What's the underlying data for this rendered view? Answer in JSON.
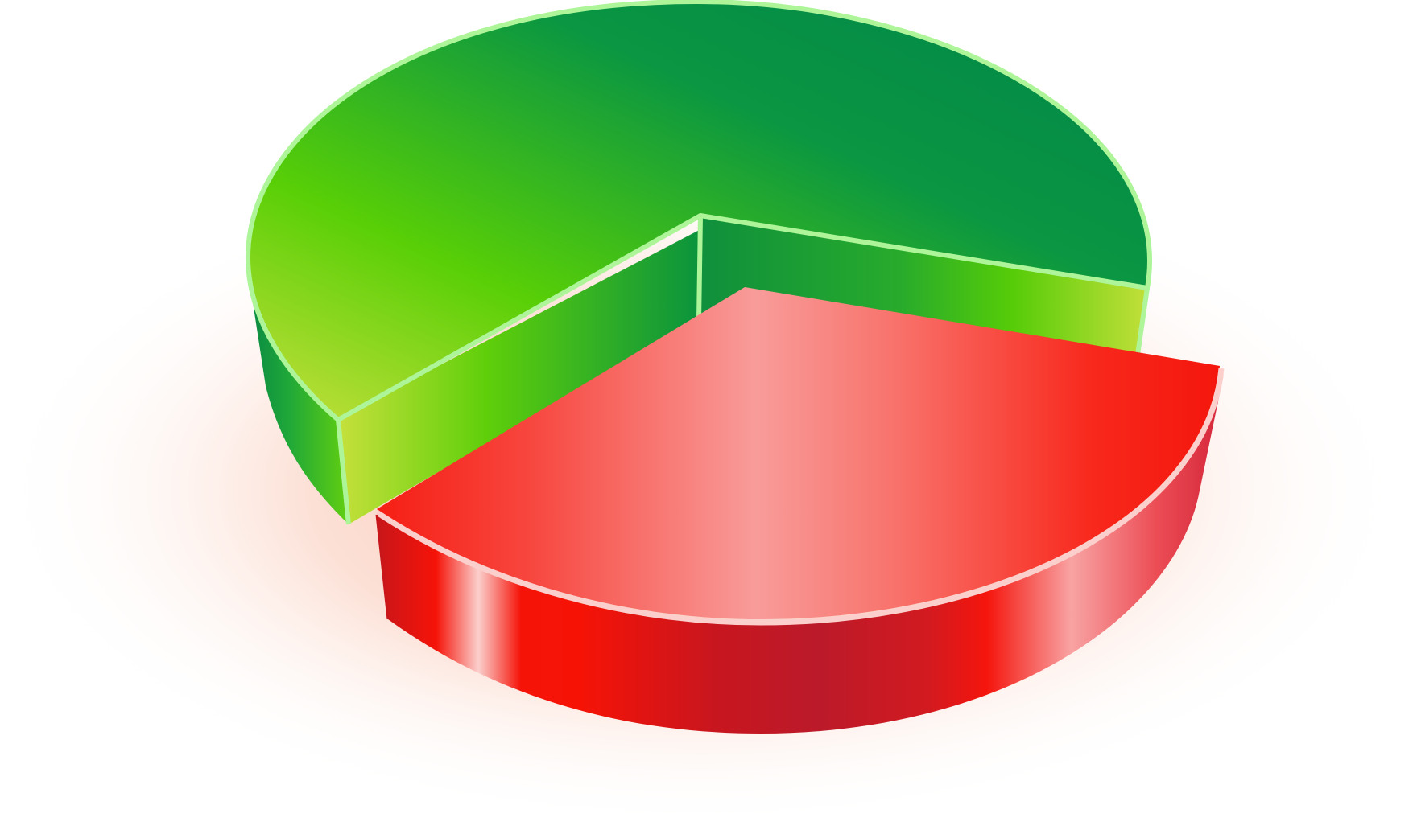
{
  "chart_data": {
    "type": "pie",
    "style": "3d-exploded",
    "title": "",
    "slices": [
      {
        "value": 72,
        "color": "#22a832",
        "exploded": false
      },
      {
        "value": 28,
        "color": "#f51a12",
        "exploded": true
      }
    ],
    "legend": "none",
    "labels_shown": false
  }
}
